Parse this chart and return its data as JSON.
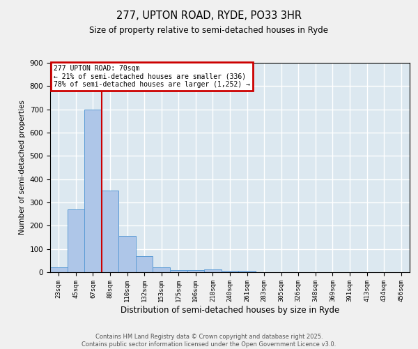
{
  "title_line1": "277, UPTON ROAD, RYDE, PO33 3HR",
  "title_line2": "Size of property relative to semi-detached houses in Ryde",
  "xlabel": "Distribution of semi-detached houses by size in Ryde",
  "ylabel": "Number of semi-detached properties",
  "bar_labels": [
    "23sqm",
    "45sqm",
    "67sqm",
    "88sqm",
    "110sqm",
    "132sqm",
    "153sqm",
    "175sqm",
    "196sqm",
    "218sqm",
    "240sqm",
    "261sqm",
    "283sqm",
    "305sqm",
    "326sqm",
    "348sqm",
    "369sqm",
    "391sqm",
    "413sqm",
    "434sqm",
    "456sqm"
  ],
  "bar_values": [
    20,
    270,
    700,
    350,
    155,
    68,
    22,
    10,
    10,
    12,
    7,
    7,
    0,
    0,
    0,
    0,
    0,
    0,
    0,
    0,
    0
  ],
  "bar_color": "#aec6e8",
  "bar_edge_color": "#5b9bd5",
  "vline_color": "#cc0000",
  "vline_x_index": 2,
  "annotation_title": "277 UPTON ROAD: 70sqm",
  "annotation_line2": "← 21% of semi-detached houses are smaller (336)",
  "annotation_line3": "78% of semi-detached houses are larger (1,252) →",
  "annotation_box_color": "#cc0000",
  "annotation_bg": "#ffffff",
  "ylim": [
    0,
    900
  ],
  "yticks": [
    0,
    100,
    200,
    300,
    400,
    500,
    600,
    700,
    800,
    900
  ],
  "bg_color": "#dce8f0",
  "grid_color": "#ffffff",
  "fig_bg_color": "#f0f0f0",
  "footer_line1": "Contains HM Land Registry data © Crown copyright and database right 2025.",
  "footer_line2": "Contains public sector information licensed under the Open Government Licence v3.0."
}
